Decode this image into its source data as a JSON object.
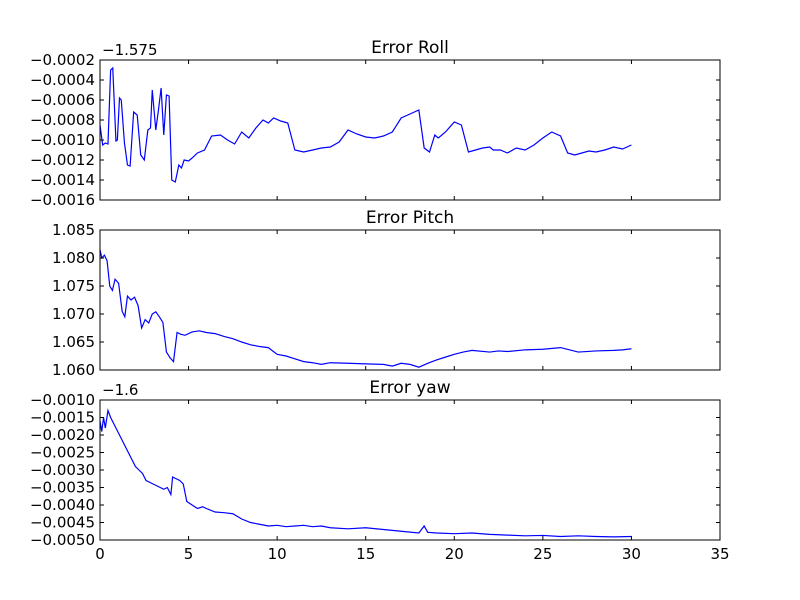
{
  "chart_data": [
    {
      "type": "line",
      "title": "Error Roll",
      "offset_text": "−1.575",
      "xlim": [
        0,
        35
      ],
      "ylim": [
        -0.0016,
        -0.0002
      ],
      "xticks": [
        0,
        5,
        10,
        15,
        20,
        25,
        30,
        35
      ],
      "yticks": [
        -0.0016,
        -0.0014,
        -0.0012,
        -0.001,
        -0.0008,
        -0.0006,
        -0.0004,
        -0.0002
      ],
      "ytick_labels": [
        "−0.0016",
        "−0.0014",
        "−0.0012",
        "−0.0010",
        "−0.0008",
        "−0.0006",
        "−0.0004",
        "−0.0002"
      ],
      "show_xtick_labels": false,
      "line_color": "#0000ff",
      "series": [
        {
          "x": [
            0,
            0.15,
            0.3,
            0.45,
            0.6,
            0.72,
            0.9,
            0.98,
            1.1,
            1.2,
            1.38,
            1.55,
            1.7,
            1.9,
            2.1,
            2.3,
            2.5,
            2.7,
            2.85,
            2.95,
            3.15,
            3.3,
            3.45,
            3.6,
            3.75,
            3.9,
            4.05,
            4.25,
            4.45,
            4.6,
            4.75,
            5.0,
            5.2,
            5.5,
            5.9,
            6.3,
            6.8,
            7.2,
            7.6,
            8.0,
            8.4,
            8.8,
            9.2,
            9.5,
            9.8,
            10.2,
            10.6,
            11.0,
            11.5,
            12.0,
            12.5,
            13.0,
            13.5,
            14.0,
            14.5,
            15.0,
            15.5,
            16.0,
            16.5,
            17.0,
            17.5,
            18.0,
            18.3,
            18.6,
            18.9,
            19.1,
            19.5,
            20.0,
            20.4,
            20.8,
            21.2,
            21.6,
            22.0,
            22.2,
            22.6,
            23.0,
            23.5,
            24.0,
            24.5,
            25.0,
            25.5,
            26.0,
            26.4,
            26.8,
            27.2,
            27.6,
            28.0,
            28.5,
            29.0,
            29.5,
            30.0
          ],
          "y": [
            -0.00085,
            -0.00105,
            -0.00103,
            -0.00104,
            -0.0003,
            -0.00028,
            -0.00101,
            -0.001,
            -0.00058,
            -0.0006,
            -0.00103,
            -0.00125,
            -0.00126,
            -0.00072,
            -0.00075,
            -0.00115,
            -0.0012,
            -0.0009,
            -0.00088,
            -0.0005,
            -0.0009,
            -0.0007,
            -0.00048,
            -0.00095,
            -0.00055,
            -0.00056,
            -0.0014,
            -0.00142,
            -0.00125,
            -0.00128,
            -0.0012,
            -0.00121,
            -0.00118,
            -0.00113,
            -0.0011,
            -0.00096,
            -0.00095,
            -0.001,
            -0.00104,
            -0.00092,
            -0.00098,
            -0.00088,
            -0.0008,
            -0.00083,
            -0.00078,
            -0.00081,
            -0.00083,
            -0.0011,
            -0.00112,
            -0.0011,
            -0.00108,
            -0.00107,
            -0.00102,
            -0.0009,
            -0.00094,
            -0.00097,
            -0.00098,
            -0.00096,
            -0.00092,
            -0.00078,
            -0.00074,
            -0.0007,
            -0.00108,
            -0.00112,
            -0.00095,
            -0.00098,
            -0.00092,
            -0.00082,
            -0.00085,
            -0.00112,
            -0.0011,
            -0.00108,
            -0.00107,
            -0.0011,
            -0.0011,
            -0.00113,
            -0.00108,
            -0.0011,
            -0.00105,
            -0.00098,
            -0.00092,
            -0.00096,
            -0.00113,
            -0.00115,
            -0.00113,
            -0.00111,
            -0.00112,
            -0.0011,
            -0.00107,
            -0.00109,
            -0.00105
          ]
        }
      ]
    },
    {
      "type": "line",
      "title": "Error Pitch",
      "offset_text": "",
      "xlim": [
        0,
        35
      ],
      "ylim": [
        1.06,
        1.085
      ],
      "xticks": [
        0,
        5,
        10,
        15,
        20,
        25,
        30,
        35
      ],
      "yticks": [
        1.06,
        1.065,
        1.07,
        1.075,
        1.08,
        1.085
      ],
      "ytick_labels": [
        "1.060",
        "1.065",
        "1.070",
        "1.075",
        "1.080",
        "1.085"
      ],
      "show_xtick_labels": false,
      "line_color": "#0000ff",
      "series": [
        {
          "x": [
            0,
            0.1,
            0.25,
            0.4,
            0.55,
            0.7,
            0.85,
            1.05,
            1.25,
            1.4,
            1.55,
            1.75,
            1.95,
            2.15,
            2.35,
            2.55,
            2.75,
            2.95,
            3.15,
            3.35,
            3.55,
            3.75,
            3.95,
            4.15,
            4.35,
            4.55,
            4.8,
            5.2,
            5.6,
            6.0,
            6.5,
            7.0,
            7.5,
            8.0,
            8.5,
            9.0,
            9.5,
            10.0,
            10.5,
            11.0,
            11.5,
            12.0,
            12.5,
            13.0,
            14.0,
            15.0,
            16.0,
            16.5,
            17.0,
            17.5,
            18.0,
            18.5,
            19.0,
            19.5,
            20.0,
            20.5,
            21.0,
            22.0,
            22.5,
            23.0,
            24.0,
            25.0,
            26.0,
            27.0,
            28.0,
            29.0,
            29.5,
            30.0
          ],
          "y": [
            1.0815,
            1.08,
            1.0805,
            1.0795,
            1.075,
            1.0742,
            1.0762,
            1.0755,
            1.0705,
            1.0695,
            1.0732,
            1.0725,
            1.073,
            1.0715,
            1.0675,
            1.069,
            1.0684,
            1.07,
            1.0704,
            1.0695,
            1.0685,
            1.0632,
            1.0622,
            1.0615,
            1.0667,
            1.0664,
            1.0662,
            1.0668,
            1.067,
            1.0667,
            1.0665,
            1.066,
            1.0656,
            1.065,
            1.0645,
            1.0642,
            1.064,
            1.0628,
            1.0625,
            1.062,
            1.0615,
            1.0613,
            1.061,
            1.0613,
            1.0612,
            1.0611,
            1.061,
            1.0607,
            1.0612,
            1.061,
            1.0605,
            1.0612,
            1.0618,
            1.0623,
            1.0628,
            1.0632,
            1.0635,
            1.0632,
            1.0634,
            1.0633,
            1.0636,
            1.0637,
            1.064,
            1.0632,
            1.0634,
            1.0635,
            1.0636,
            1.0638
          ]
        }
      ]
    },
    {
      "type": "line",
      "title": "Error yaw",
      "offset_text": "−1.6",
      "xlim": [
        0,
        35
      ],
      "ylim": [
        -0.005,
        -0.001
      ],
      "xticks": [
        0,
        5,
        10,
        15,
        20,
        25,
        30,
        35
      ],
      "xtick_labels": [
        "0",
        "5",
        "10",
        "15",
        "20",
        "25",
        "30",
        "35"
      ],
      "yticks": [
        -0.005,
        -0.0045,
        -0.004,
        -0.0035,
        -0.003,
        -0.0025,
        -0.002,
        -0.0015,
        -0.001
      ],
      "ytick_labels": [
        "−0.0050",
        "−0.0045",
        "−0.0040",
        "−0.0035",
        "−0.0030",
        "−0.0025",
        "−0.0020",
        "−0.0015",
        "−0.0010"
      ],
      "show_xtick_labels": true,
      "line_color": "#0000ff",
      "series": [
        {
          "x": [
            0,
            0.1,
            0.2,
            0.3,
            0.45,
            0.6,
            0.8,
            1.0,
            1.2,
            1.4,
            1.6,
            1.8,
            2.0,
            2.2,
            2.4,
            2.6,
            2.8,
            3.0,
            3.2,
            3.4,
            3.6,
            3.8,
            4.0,
            4.1,
            4.3,
            4.5,
            4.7,
            4.9,
            5.2,
            5.5,
            5.8,
            6.0,
            6.5,
            7.0,
            7.5,
            8.0,
            8.5,
            9.0,
            9.5,
            10.0,
            10.5,
            11.0,
            11.5,
            12.0,
            12.5,
            13.0,
            14.0,
            15.0,
            16.0,
            17.0,
            18.0,
            18.3,
            18.5,
            19.0,
            20.0,
            21.0,
            22.0,
            23.0,
            24.0,
            25.0,
            26.0,
            27.0,
            28.0,
            29.0,
            30.0
          ],
          "y": [
            -0.0016,
            -0.0019,
            -0.0015,
            -0.0018,
            -0.0013,
            -0.0015,
            -0.0017,
            -0.0019,
            -0.0021,
            -0.0023,
            -0.0025,
            -0.0027,
            -0.0029,
            -0.003,
            -0.0031,
            -0.0033,
            -0.00335,
            -0.0034,
            -0.00345,
            -0.0035,
            -0.00355,
            -0.0035,
            -0.0037,
            -0.0032,
            -0.00325,
            -0.0033,
            -0.0034,
            -0.0039,
            -0.004,
            -0.0041,
            -0.00405,
            -0.0041,
            -0.0042,
            -0.00422,
            -0.00425,
            -0.0044,
            -0.0045,
            -0.00455,
            -0.0046,
            -0.00458,
            -0.00462,
            -0.0046,
            -0.00458,
            -0.00462,
            -0.0046,
            -0.00465,
            -0.00468,
            -0.00465,
            -0.0047,
            -0.00475,
            -0.0048,
            -0.0046,
            -0.00478,
            -0.0048,
            -0.00482,
            -0.0048,
            -0.00484,
            -0.00486,
            -0.00488,
            -0.00487,
            -0.0049,
            -0.00488,
            -0.0049,
            -0.00491,
            -0.0049
          ]
        }
      ]
    }
  ]
}
